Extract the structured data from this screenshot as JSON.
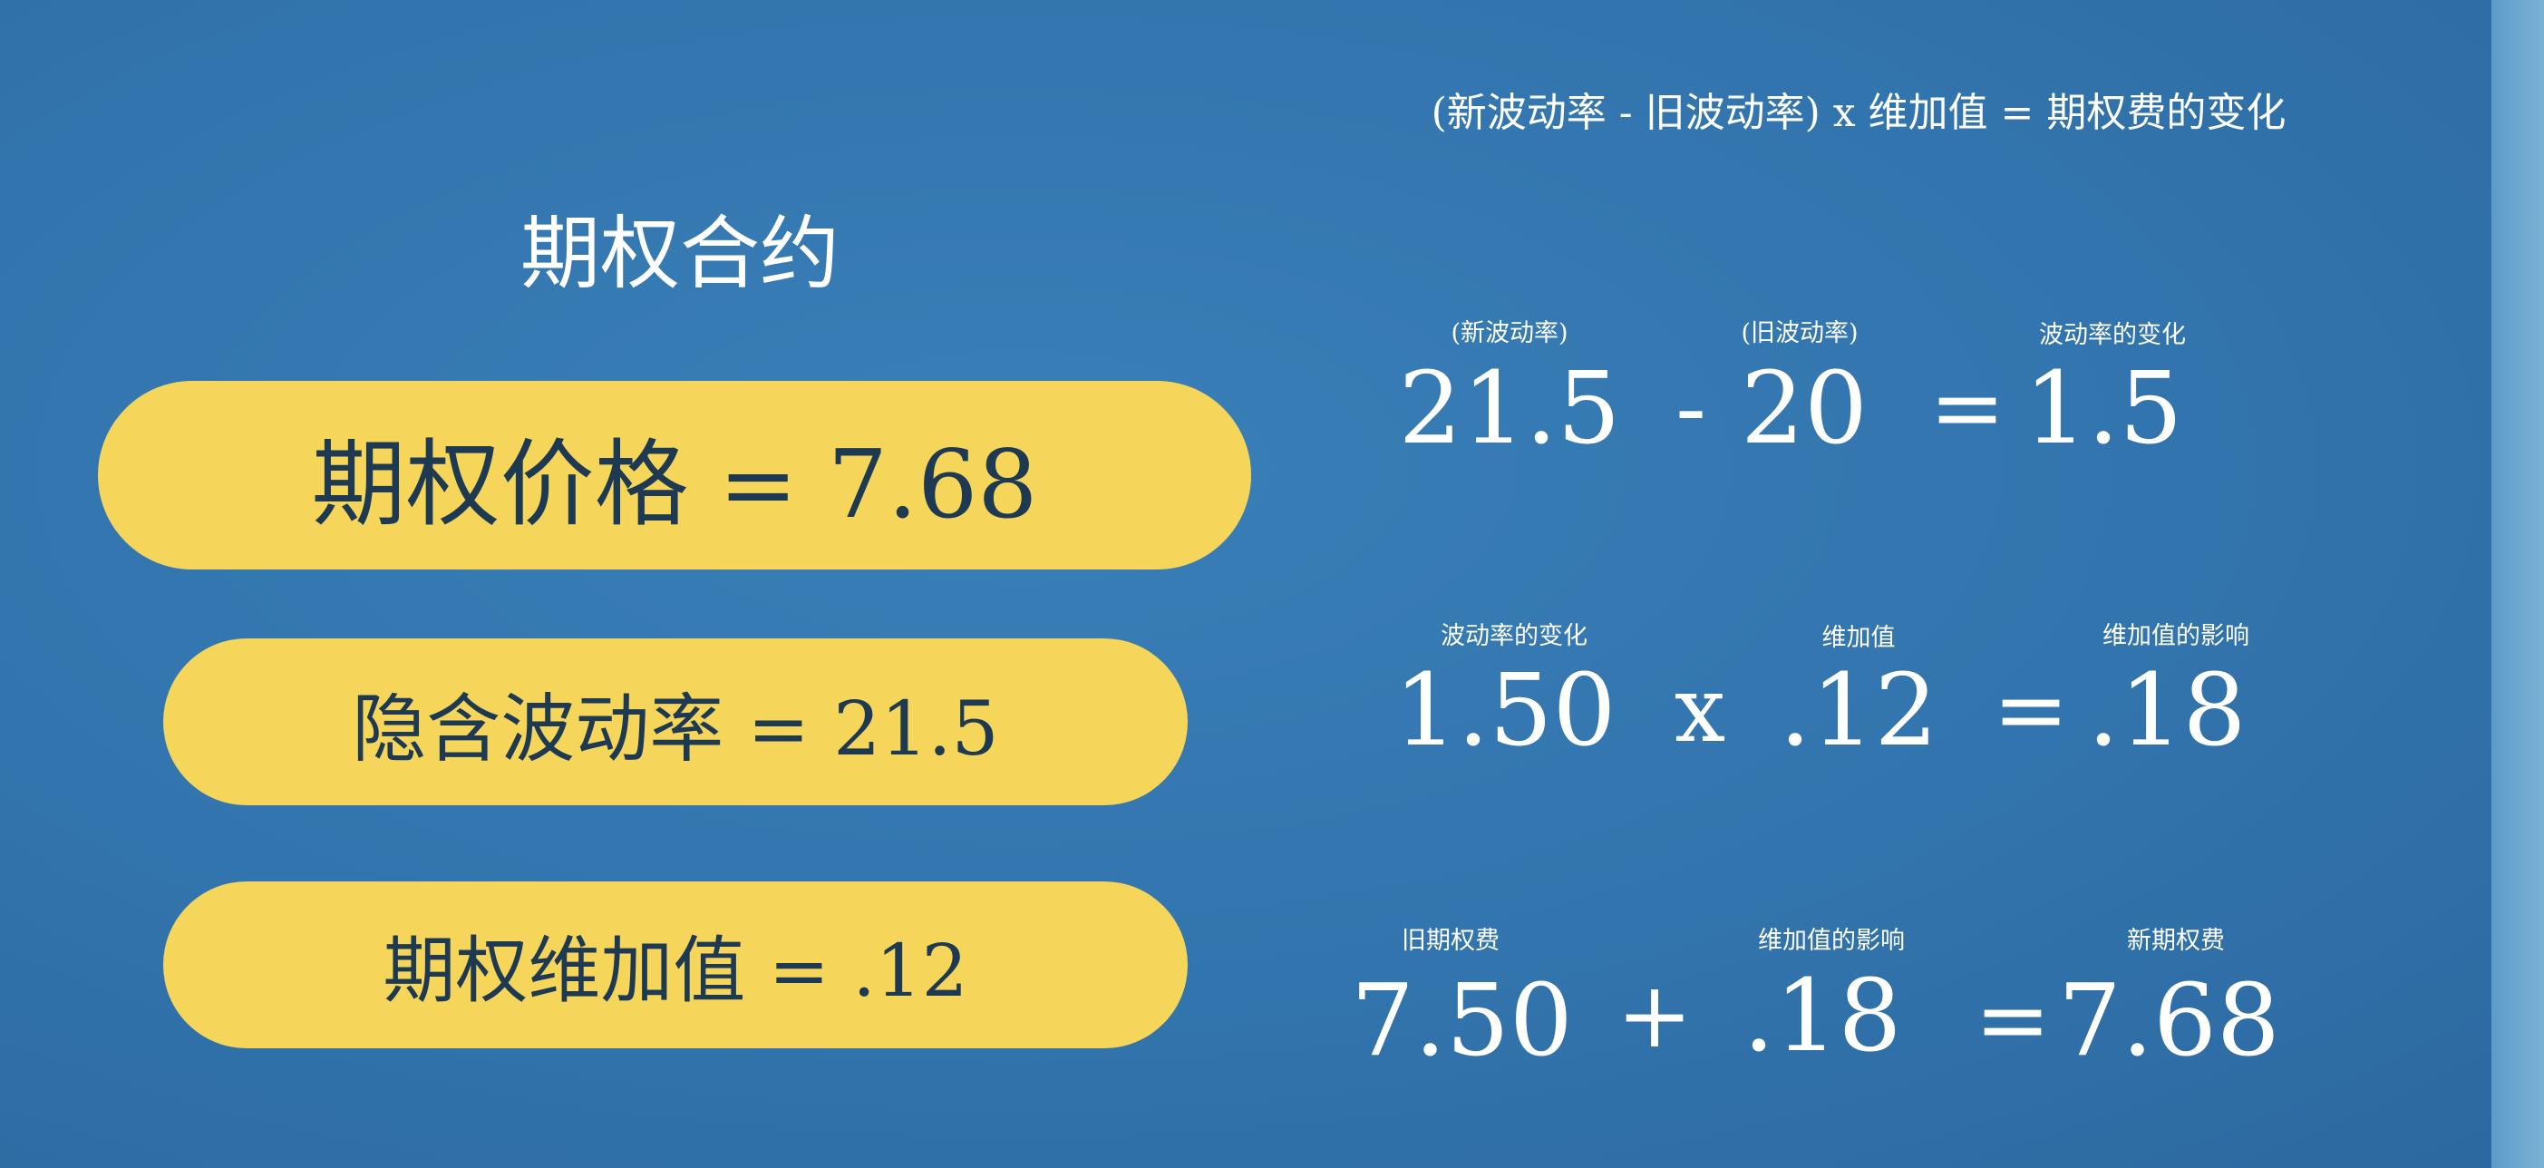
{
  "title": "期权合约",
  "pills": {
    "price": "期权价格 = 7.68",
    "implied_vol": "隐含波动率 = 21.5",
    "vega": "期权维加值 = .12"
  },
  "formula": "(新波动率 - 旧波动率) x 维加值 = 期权费的变化",
  "row1": {
    "label_a": "(新波动率)",
    "label_b": "(旧波动率)",
    "label_c": "波动率的变化",
    "value_a": "21.5",
    "op1": "-",
    "value_b": "20",
    "op2": "=",
    "value_c": "1.5"
  },
  "row2": {
    "label_a": "波动率的变化",
    "label_b": "维加值",
    "label_c": "维加值的影响",
    "value_a": "1.50",
    "op1": "x",
    "value_b": ".12",
    "op2": "=",
    "value_c": ".18"
  },
  "row3": {
    "label_a": "旧期权费",
    "label_b": "维加值的影响",
    "label_c": "新期权费",
    "value_a": "7.50",
    "op1": "+",
    "value_b": ".18",
    "op2": "=",
    "value_c": "7.68"
  },
  "colors": {
    "background": "#3274ad",
    "pill": "#f5d65a",
    "pill_text": "#1e3a52",
    "text": "#ffffff"
  }
}
